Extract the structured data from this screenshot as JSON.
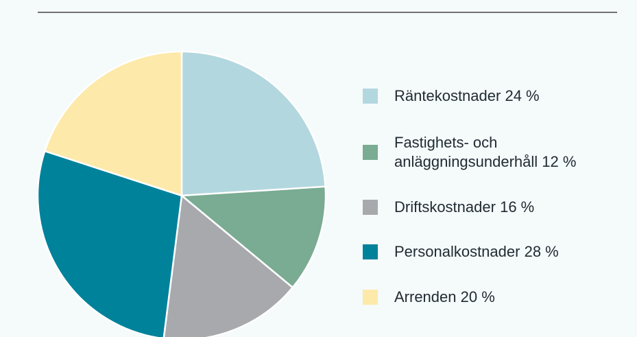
{
  "chart_data": {
    "type": "pie",
    "categories": [
      "Räntekostnader",
      "Fastighets- och anläggningsunderhåll",
      "Driftskostnader",
      "Personalkostnader",
      "Arrenden"
    ],
    "values": [
      24,
      12,
      16,
      28,
      20
    ],
    "value_labels": [
      "24 %",
      "12 %",
      "16 %",
      "28 %",
      "20 %"
    ],
    "colors": [
      "#b3d7df",
      "#7aab93",
      "#a7a9ac",
      "#00829b",
      "#fde9a9"
    ]
  }
}
